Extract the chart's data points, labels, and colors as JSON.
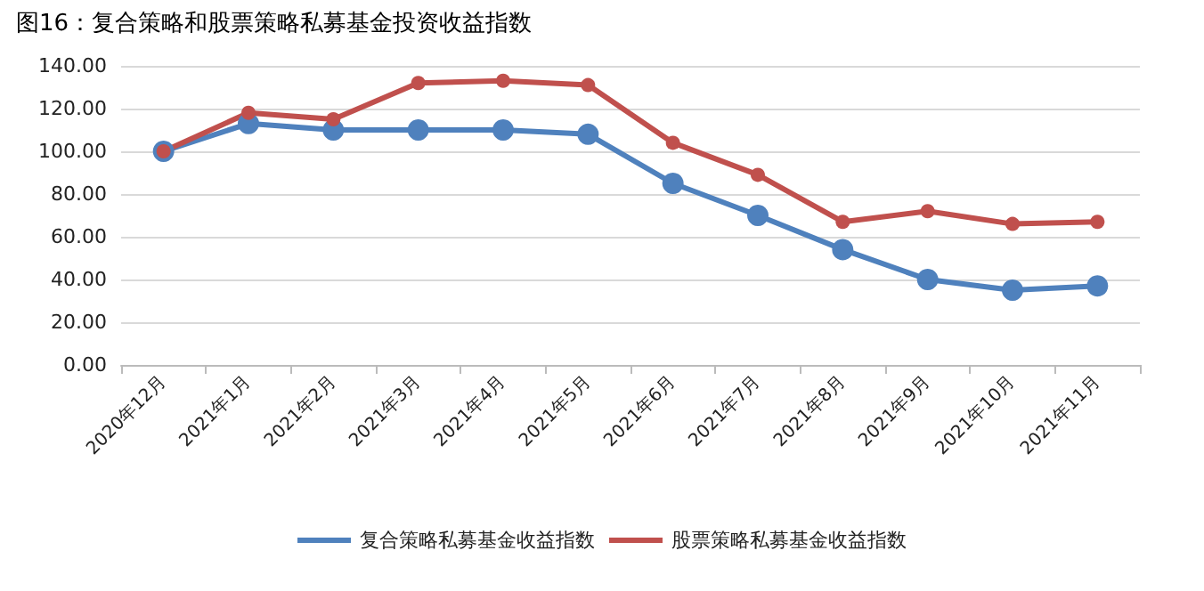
{
  "chart_data": {
    "type": "line",
    "title": "图16：复合策略和股票策略私募基金投资收益指数",
    "categories": [
      "2020年12月",
      "2021年1月",
      "2021年2月",
      "2021年3月",
      "2021年4月",
      "2021年5月",
      "2021年6月",
      "2021年7月",
      "2021年8月",
      "2021年9月",
      "2021年10月",
      "2021年11月"
    ],
    "series": [
      {
        "name": "复合策略私募基金收益指数",
        "color": "#4f81bd",
        "values": [
          100,
          113,
          110,
          110,
          110,
          108,
          85,
          70,
          54,
          40,
          35,
          37
        ]
      },
      {
        "name": "股票策略私募基金收益指数",
        "color": "#c0504d",
        "values": [
          100,
          118,
          115,
          132,
          133,
          131,
          104,
          89,
          67,
          72,
          66,
          67
        ]
      }
    ],
    "ylim": [
      0,
      140
    ],
    "yticks": [
      {
        "value": 0,
        "label": "0.00"
      },
      {
        "value": 20,
        "label": "20.00"
      },
      {
        "value": 40,
        "label": "40.00"
      },
      {
        "value": 60,
        "label": "60.00"
      },
      {
        "value": 80,
        "label": "80.00"
      },
      {
        "value": 100,
        "label": "100.00"
      },
      {
        "value": 120,
        "label": "120.00"
      },
      {
        "value": 140,
        "label": "140.00"
      }
    ],
    "grid": "y",
    "legend": "bottom",
    "marker": "circle",
    "line_style": "solid"
  }
}
